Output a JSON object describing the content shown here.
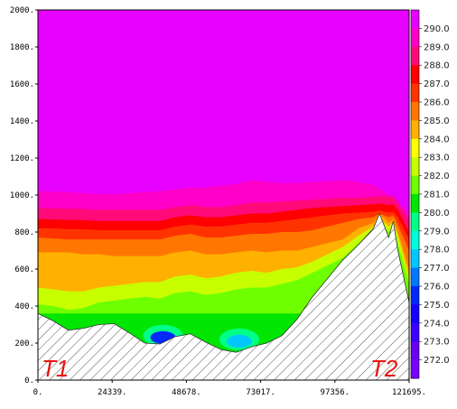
{
  "chart_data": {
    "type": "contour",
    "xlim": [
      0,
      121695
    ],
    "ylim": [
      0,
      2000
    ],
    "x_ticks": [
      "0.",
      "24339.",
      "48678.",
      "73017.",
      "97356.",
      "121695."
    ],
    "y_ticks": [
      "0.",
      "200.",
      "400.",
      "600.",
      "800.",
      "1000.",
      "1200.",
      "1400.",
      "1600.",
      "1800.",
      "2000."
    ],
    "labels": {
      "left_end": "T1",
      "right_end": "T2"
    },
    "colorbar": {
      "labels": [
        "290.0",
        "289.0",
        "288.0",
        "287.0",
        "286.0",
        "285.0",
        "284.0",
        "283.0",
        "282.0",
        "281.0",
        "280.0",
        "279.0",
        "278.0",
        "277.0",
        "276.0",
        "275.0",
        "274.0",
        "273.0",
        "272.0"
      ],
      "colors": [
        "#e600ff",
        "#ff00c8",
        "#ff0a78",
        "#ff0000",
        "#ff3300",
        "#ff7700",
        "#ffb000",
        "#ffff00",
        "#c8ff00",
        "#6eff00",
        "#00e600",
        "#00ff88",
        "#00ffdc",
        "#00c8ff",
        "#0078ff",
        "#0028ff",
        "#1400ff",
        "#3c00ff",
        "#6a00f0",
        "#7800ff"
      ]
    },
    "terrain": {
      "x": [
        0,
        5000,
        10000,
        15000,
        20000,
        25000,
        30000,
        35000,
        40000,
        45000,
        50000,
        55000,
        60000,
        65000,
        70000,
        75000,
        80000,
        85000,
        90000,
        95000,
        100000,
        105000,
        110000,
        112000,
        115000,
        116500,
        118000,
        121695
      ],
      "y": [
        360,
        320,
        270,
        280,
        300,
        305,
        255,
        200,
        195,
        235,
        250,
        205,
        165,
        150,
        180,
        200,
        240,
        330,
        450,
        550,
        650,
        730,
        820,
        900,
        770,
        860,
        700,
        420
      ]
    },
    "contours": [
      {
        "level": 285.0,
        "y": [
          690,
          690,
          690,
          680,
          680,
          670,
          670,
          670,
          670,
          690,
          700,
          680,
          680,
          690,
          700,
          690,
          700,
          700,
          720,
          740,
          760,
          820,
          850,
          900,
          850,
          870,
          800,
          600
        ]
      },
      {
        "level": 286.0,
        "y": [
          770,
          765,
          760,
          760,
          760,
          760,
          760,
          760,
          760,
          780,
          790,
          770,
          770,
          780,
          790,
          790,
          800,
          800,
          810,
          830,
          850,
          870,
          880,
          900,
          880,
          890,
          840,
          700
        ]
      },
      {
        "level": 287.0,
        "y": [
          820,
          820,
          815,
          815,
          810,
          810,
          810,
          810,
          810,
          830,
          840,
          830,
          830,
          840,
          850,
          850,
          860,
          870,
          880,
          890,
          900,
          905,
          910,
          915,
          905,
          910,
          880,
          760
        ]
      },
      {
        "level": 288.0,
        "y": [
          870,
          868,
          866,
          864,
          860,
          860,
          860,
          860,
          860,
          880,
          890,
          880,
          880,
          890,
          900,
          900,
          910,
          920,
          930,
          935,
          940,
          945,
          950,
          955,
          945,
          950,
          920,
          800
        ]
      },
      {
        "level": 289.0,
        "y": [
          930,
          928,
          926,
          924,
          920,
          920,
          920,
          920,
          920,
          935,
          945,
          935,
          935,
          945,
          960,
          960,
          965,
          970,
          975,
          980,
          985,
          985,
          990,
          995,
          990,
          990,
          960,
          860
        ]
      },
      {
        "level": 290.0,
        "y": [
          1020,
          1018,
          1015,
          1010,
          1005,
          1005,
          1010,
          1015,
          1020,
          1030,
          1040,
          1040,
          1050,
          1060,
          1080,
          1070,
          1065,
          1065,
          1070,
          1075,
          1080,
          1070,
          1055,
          1035,
          1000,
          1000,
          960,
          900
        ]
      }
    ],
    "lower_bands": [
      {
        "level": 283.0,
        "y": [
          500,
          490,
          480,
          480,
          500,
          510,
          520,
          530,
          530,
          560,
          570,
          550,
          560,
          580,
          590,
          580,
          600,
          610,
          640,
          680,
          720,
          780,
          830,
          870,
          830,
          850,
          780,
          560
        ]
      },
      {
        "level": 282.0,
        "y": [
          410,
          400,
          380,
          390,
          420,
          430,
          440,
          450,
          440,
          470,
          480,
          460,
          470,
          490,
          500,
          500,
          520,
          540,
          580,
          620,
          660,
          740,
          800,
          860,
          800,
          830,
          740,
          520
        ]
      }
    ],
    "cool_spots": [
      {
        "center_x": 41000,
        "center_y": 240,
        "level": 276.0
      },
      {
        "center_x": 66000,
        "center_y": 220,
        "level": 278.0
      }
    ]
  }
}
